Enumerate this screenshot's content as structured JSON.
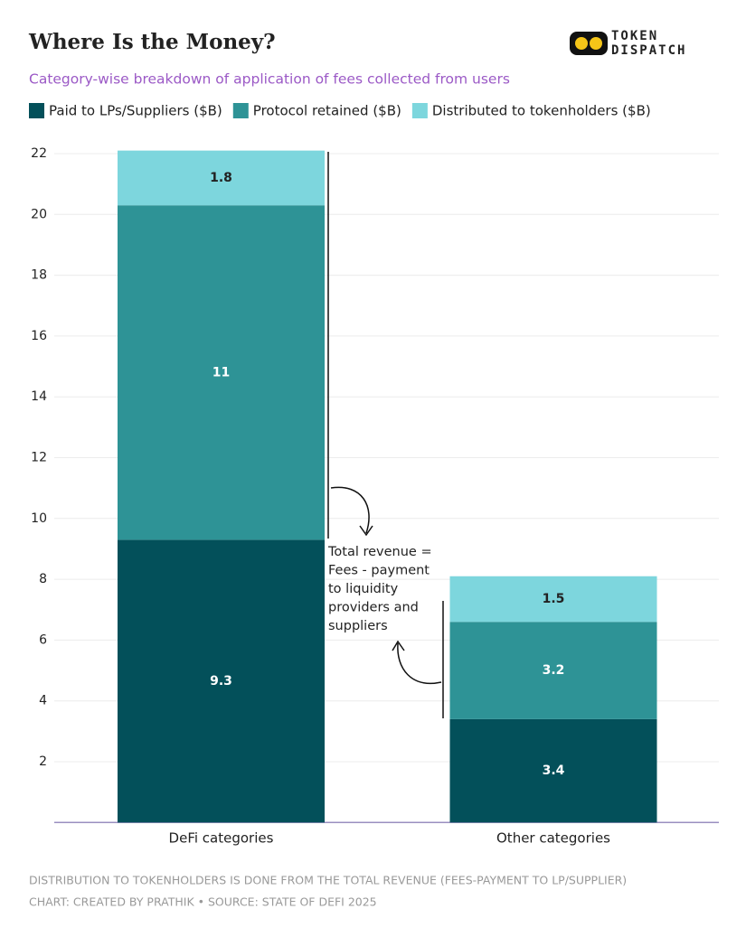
{
  "header": {
    "title": "Where Is the Money?",
    "subtitle": "Category-wise breakdown of application of fees collected from users",
    "logo": [
      "TOKEN",
      "DISPATCH"
    ]
  },
  "chart_data": {
    "type": "stacked_bar",
    "categories": [
      "DeFi categories",
      "Other categories"
    ],
    "series": [
      {
        "name": "Paid to LPs/Suppliers ($B)",
        "color": "#03505a",
        "values": [
          9.3,
          3.4
        ]
      },
      {
        "name": "Protocol retained ($B)",
        "color": "#2e9396",
        "values": [
          11,
          3.2
        ]
      },
      {
        "name": "Distributed to tokenholders ($B)",
        "color": "#7dd6dd",
        "values": [
          1.8,
          1.5
        ]
      }
    ],
    "ylim": [
      0,
      22.3
    ],
    "yticks": [
      2,
      4,
      6,
      8,
      10,
      12,
      14,
      16,
      18,
      20,
      22
    ],
    "grid": true,
    "annotation": [
      "Total revenue =",
      "Fees - payment",
      "to liquidity",
      "providers and",
      "suppliers"
    ]
  },
  "footer": {
    "note": "DISTRIBUTION TO TOKENHOLDERS IS DONE FROM THE TOTAL REVENUE (FEES-PAYMENT TO LP/SUPPLIER)",
    "credit": "CHART: CREATED BY PRATHIK • SOURCE: STATE OF DEFI 2025"
  }
}
